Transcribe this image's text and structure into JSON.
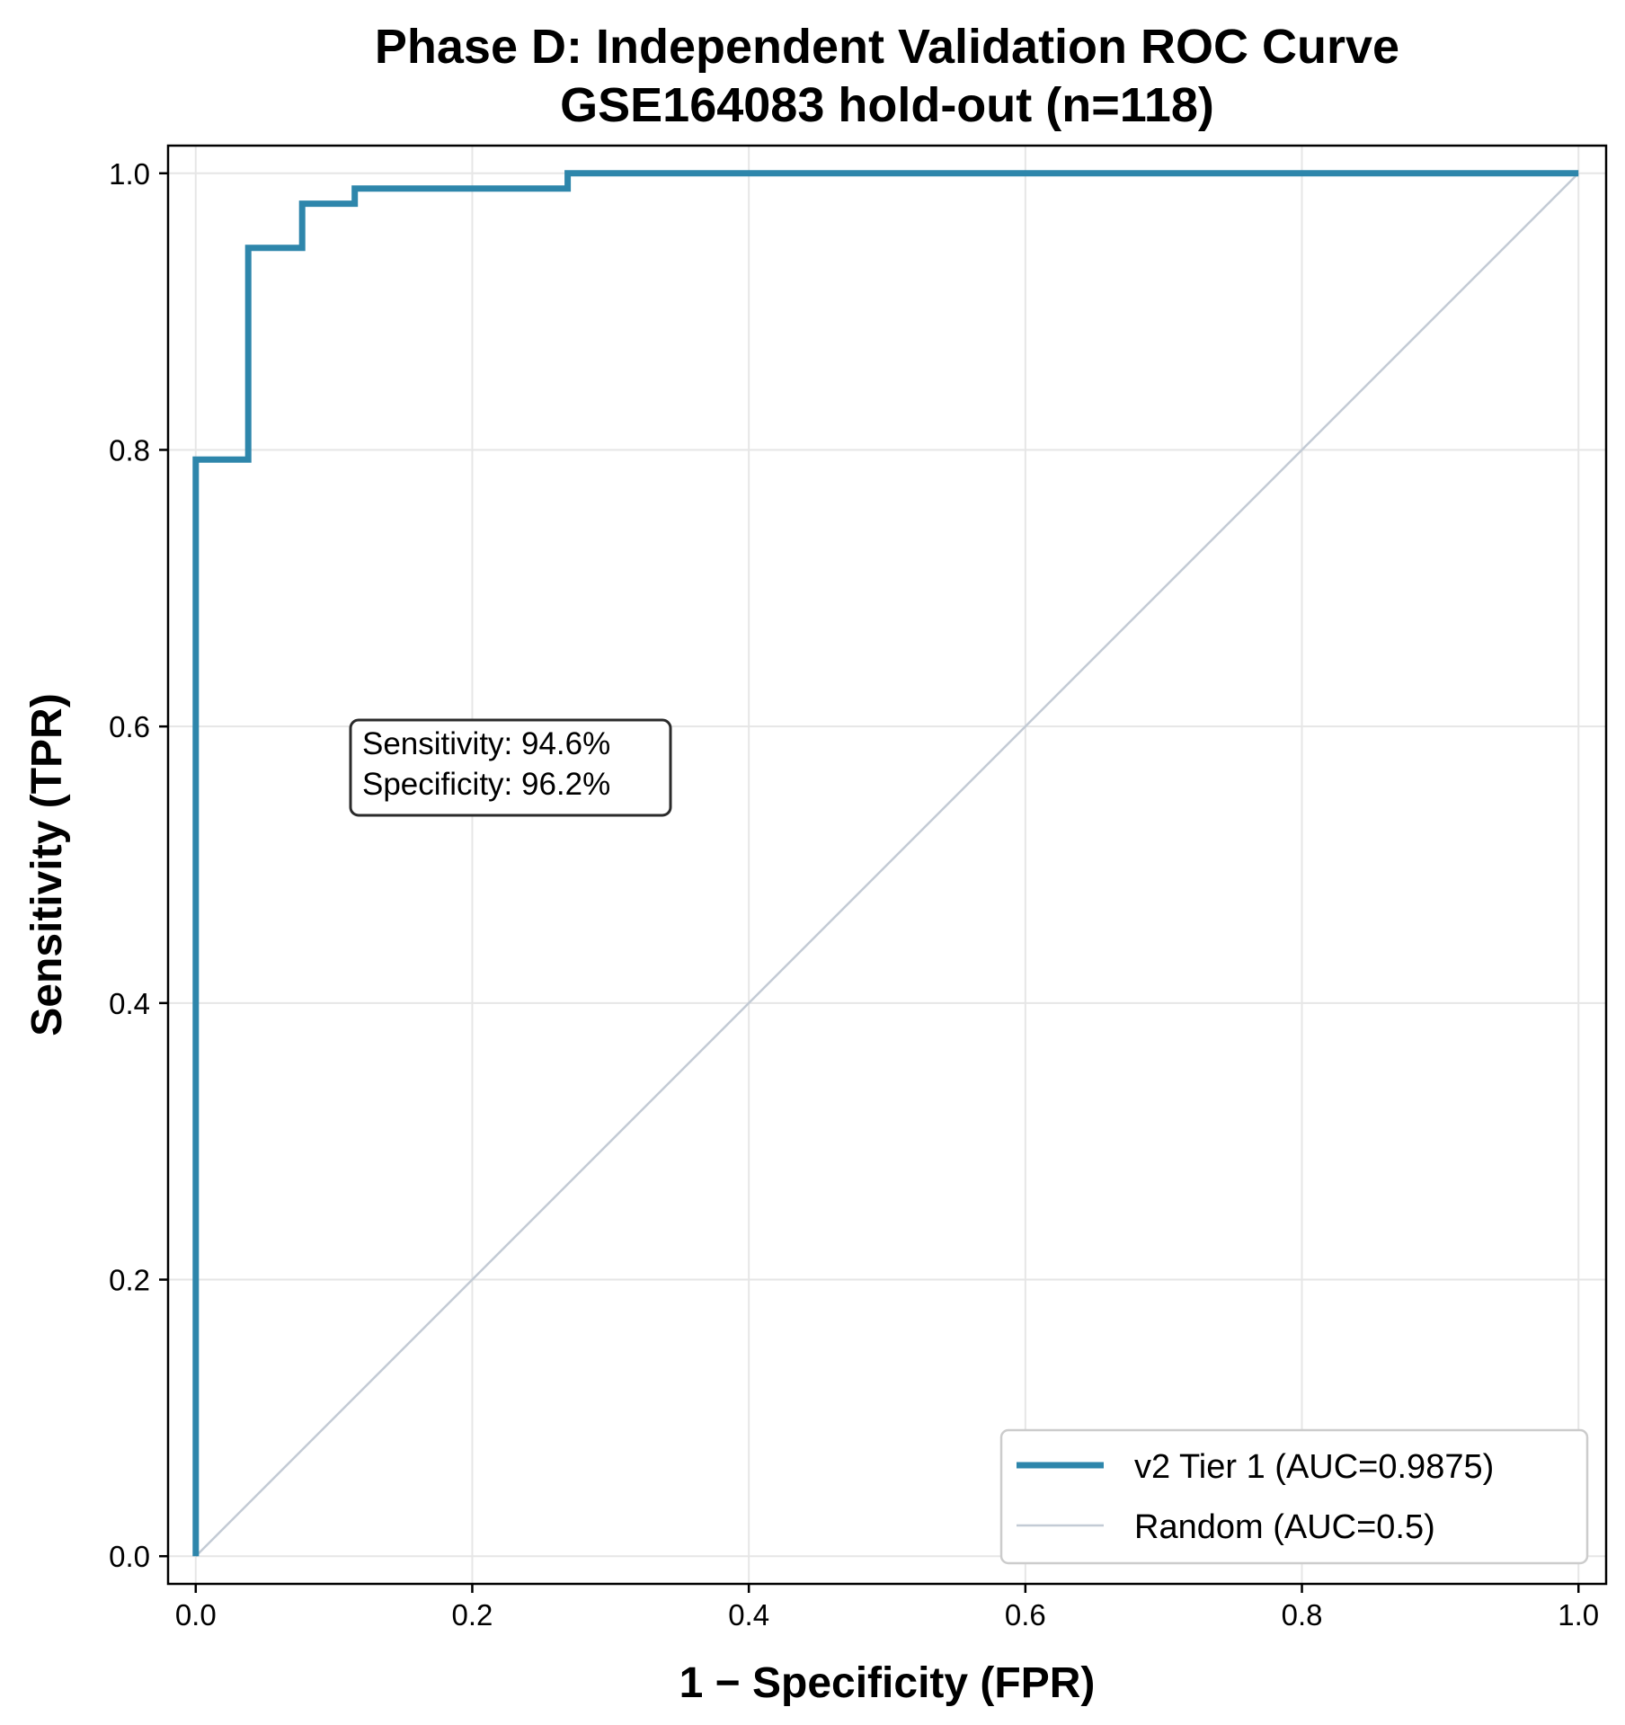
{
  "chart_data": {
    "type": "line",
    "title": "Phase D: Independent Validation ROC Curve",
    "subtitle": "GSE164083 hold-out (n=118)",
    "xlabel": "1 − Specificity (FPR)",
    "ylabel": "Sensitivity (TPR)",
    "xlim": [
      -0.02,
      1.02
    ],
    "ylim": [
      -0.02,
      1.02
    ],
    "xticks": [
      0.0,
      0.2,
      0.4,
      0.6,
      0.8,
      1.0
    ],
    "yticks": [
      0.0,
      0.2,
      0.4,
      0.6,
      0.8,
      1.0
    ],
    "xtick_labels": [
      "0.0",
      "0.2",
      "0.4",
      "0.6",
      "0.8",
      "1.0"
    ],
    "ytick_labels": [
      "0.0",
      "0.2",
      "0.4",
      "0.6",
      "0.8",
      "1.0"
    ],
    "grid": true,
    "legend_position": "lower-right",
    "series": [
      {
        "name": "v2 Tier 1 (AUC=0.9875)",
        "color": "#2e86ab",
        "x": [
          0.0,
          0.0,
          0.038,
          0.038,
          0.077,
          0.077,
          0.115,
          0.115,
          0.269,
          0.269,
          1.0
        ],
        "y": [
          0.0,
          0.793,
          0.793,
          0.946,
          0.946,
          0.978,
          0.978,
          0.989,
          0.989,
          1.0,
          1.0
        ]
      },
      {
        "name": "Random (AUC=0.5)",
        "color": "#c3cbd5",
        "x": [
          0.0,
          1.0
        ],
        "y": [
          0.0,
          1.0
        ]
      }
    ],
    "annotation": {
      "lines": [
        "Sensitivity: 94.6%",
        "Specificity: 96.2%"
      ],
      "x": 0.12,
      "y": 0.575
    }
  }
}
